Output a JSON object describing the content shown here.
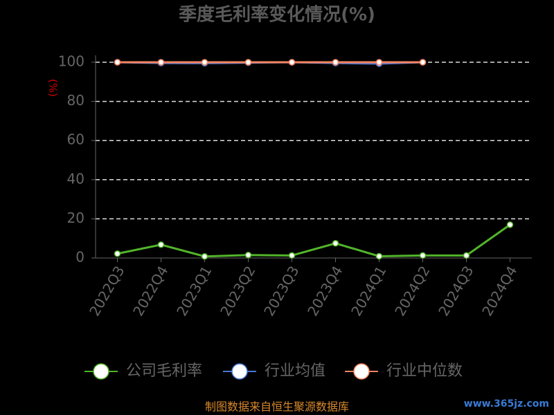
{
  "chart_data": {
    "type": "line",
    "title": "季度毛利率变化情况(%)",
    "y_label": "(%)",
    "categories": [
      "2022Q3",
      "2022Q4",
      "2023Q1",
      "2023Q2",
      "2023Q3",
      "2023Q4",
      "2024Q1",
      "2024Q2",
      "2024Q3",
      "2024Q4"
    ],
    "series": [
      {
        "name": "公司毛利率",
        "color": "#52b52a",
        "values": [
          2.2,
          6.8,
          0.8,
          1.5,
          1.3,
          7.5,
          0.9,
          1.3,
          1.3,
          17.0
        ]
      },
      {
        "name": "行业均值",
        "color": "#4a78d6",
        "values": [
          100,
          99.6,
          99.5,
          99.8,
          100,
          99.6,
          99.3,
          100,
          null,
          null
        ]
      },
      {
        "name": "行业中位数",
        "color": "#f4845f",
        "values": [
          100,
          100,
          100,
          100,
          100,
          100,
          100,
          100,
          null,
          null
        ]
      }
    ],
    "ylim": [
      0,
      100
    ],
    "yticks": [
      0,
      20,
      40,
      60,
      80,
      100
    ],
    "grid": true,
    "legend": "bottom",
    "source": "制图数据来自恒生聚源数据库",
    "watermark": "www.365jz.com"
  }
}
